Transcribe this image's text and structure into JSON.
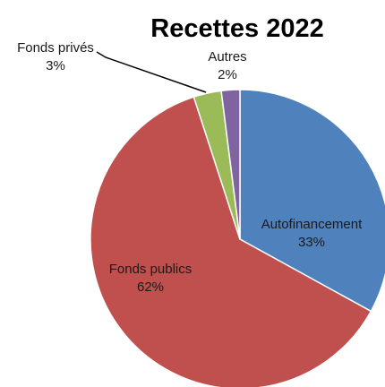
{
  "chart_data": {
    "type": "pie",
    "title": "Recettes 2022",
    "slices": [
      {
        "label": "Autofinancement",
        "value": 33,
        "value_label": "33%",
        "color": "#4f81bd"
      },
      {
        "label": "Fonds publics",
        "value": 62,
        "value_label": "62%",
        "color": "#c0504d"
      },
      {
        "label": "Fonds privés",
        "value": 3,
        "value_label": "3%",
        "color": "#9bbb59"
      },
      {
        "label": "Autres",
        "value": 2,
        "value_label": "2%",
        "color": "#8064a2"
      }
    ],
    "start": "12 o'clock",
    "direction": "clockwise",
    "slice_border_color": "#ffffff"
  }
}
